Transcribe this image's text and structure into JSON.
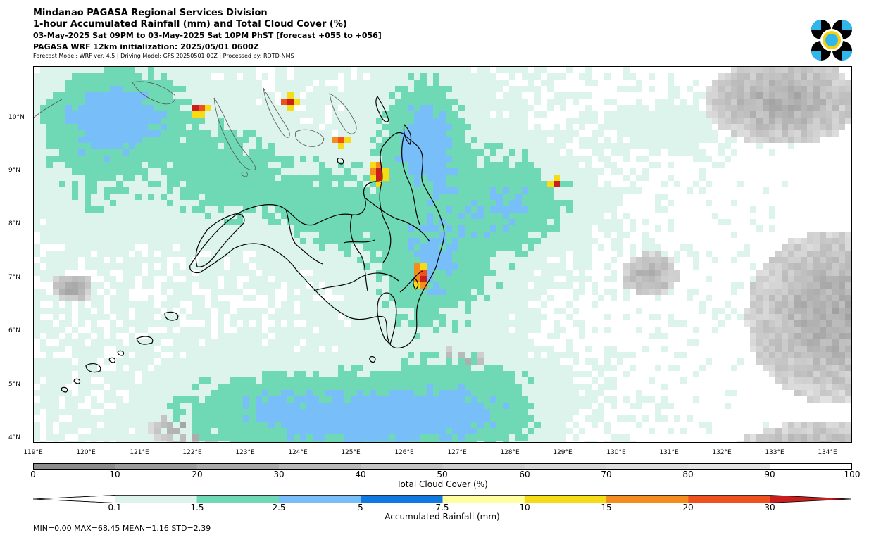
{
  "titles": {
    "line1": "Mindanao PAGASA Regional Services Division",
    "line2": "1-hour Accumulated Rainfall (mm) and Total Cloud Cover (%)",
    "line3": "03-May-2025 Sat 09PM to 03-May-2025 Sat 10PM PhST [forecast +055 to +056]",
    "line4": "PAGASA WRF 12km initialization: 2025/05/01 0600Z",
    "line5": "Forecast Model: WRF ver. 4.5 | Driving Model: GFS 20250501 00Z | Processed by: RDTD-NMS"
  },
  "map": {
    "lon_labels": [
      "119°E",
      "120°E",
      "121°E",
      "122°E",
      "123°E",
      "124°E",
      "125°E",
      "126°E",
      "127°E",
      "128°E",
      "129°E",
      "130°E",
      "131°E",
      "132°E",
      "133°E",
      "134°E"
    ],
    "lat_labels": [
      "10°N",
      "9°N",
      "8°N",
      "7°N",
      "6°N",
      "5°N",
      "4°N"
    ],
    "ocean_color": "#ffffff",
    "land_outline_color": "#000000"
  },
  "cloud_cover": {
    "label": "Total Cloud Cover (%)",
    "ticks": [
      "0",
      "10",
      "20",
      "30",
      "40",
      "50",
      "60",
      "70",
      "80",
      "90",
      "100"
    ],
    "colors": [
      "#8c8c8c",
      "#9c9c9c",
      "#aaaaaa",
      "#b8b8b8",
      "#c4c4c4",
      "#cecece",
      "#d6d6d6",
      "#dddddd",
      "#e4e4e4",
      "#ffffff"
    ]
  },
  "rainfall": {
    "label": "Accumulated Rainfall (mm)",
    "ticks": [
      "0.1",
      "1.5",
      "2.5",
      "5",
      "7.5",
      "10",
      "15",
      "20",
      "30"
    ],
    "colors": [
      "#ffffff",
      "#dcf4ec",
      "#6fd8b4",
      "#78bef9",
      "#0f78e1",
      "#ffffa0",
      "#f5dc14",
      "#f58c1e",
      "#f0501e",
      "#c81e1e"
    ]
  },
  "stats": "MIN=0.00   MAX=68.45   MEAN=1.16   STD=2.39",
  "logo": {
    "name": "PAGASA"
  }
}
